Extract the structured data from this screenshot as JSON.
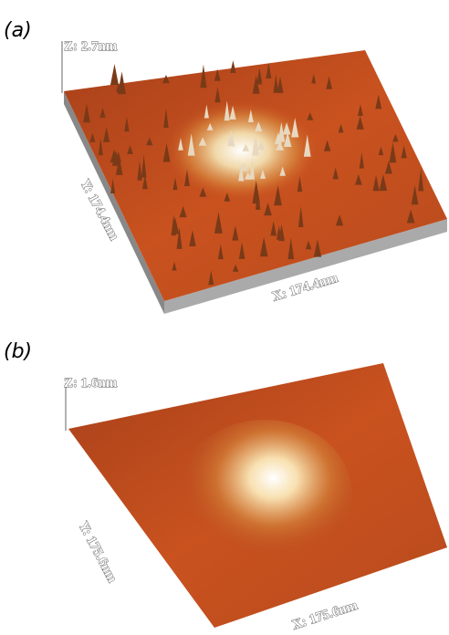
{
  "panels": [
    {
      "label": "(a)",
      "z_label": "Z: 2.7nm",
      "y_label": "Y: 174.4nm",
      "x_label": "X: 174.4nm"
    },
    {
      "label": "(b)",
      "z_label": "Z: 1.6nm",
      "y_label": "Y: 175.6nm",
      "x_label": "X: 175.6nm"
    }
  ]
}
